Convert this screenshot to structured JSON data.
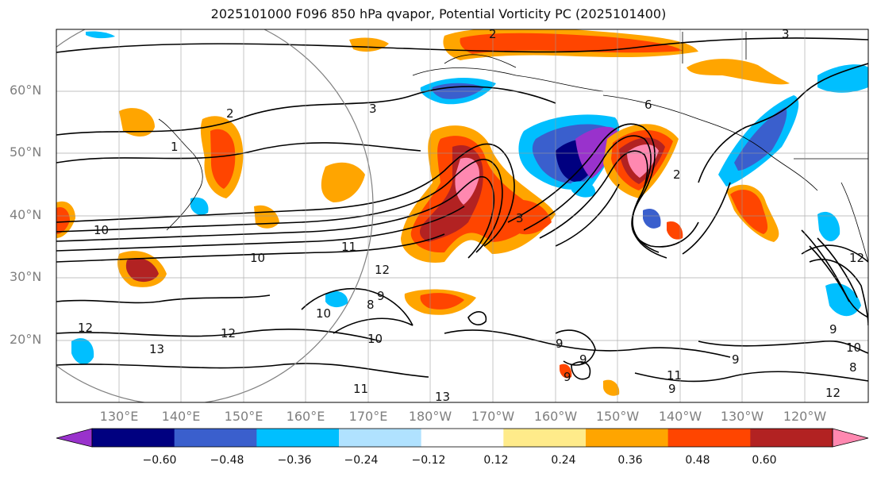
{
  "title": "2025101000 F096 850 hPa qvapor, Potential Vorticity PC (2025101400)",
  "latitude_labels": [
    "60°N",
    "50°N",
    "40°N",
    "30°N",
    "20°N"
  ],
  "longitude_labels": [
    "130°E",
    "140°E",
    "150°E",
    "160°E",
    "170°E",
    "180°W",
    "170°W",
    "160°W",
    "150°W",
    "140°W",
    "130°W",
    "120°W"
  ],
  "colorbar": {
    "colors": [
      "#9932cc",
      "#000080",
      "#3a5fcd",
      "#00bfff",
      "#b0e2ff",
      "#ffffff",
      "#ffeb8a",
      "#ffa500",
      "#ff4500",
      "#b22222",
      "#ff88b0"
    ],
    "tick_labels": [
      "−0.60",
      "−0.48",
      "−0.36",
      "−0.24",
      "−0.12",
      "0.12",
      "0.24",
      "0.36",
      "0.48",
      "0.60"
    ]
  },
  "contour_labels": [
    "2",
    "3",
    "2",
    "1",
    "3",
    "6",
    "2",
    "10",
    "11",
    "10",
    "12",
    "9",
    "8",
    "10",
    "10",
    "12",
    "13",
    "12",
    "9",
    "9",
    "9",
    "11",
    "13",
    "11",
    "9",
    "10",
    "8",
    "12",
    "9",
    "9",
    "12",
    "3"
  ]
}
